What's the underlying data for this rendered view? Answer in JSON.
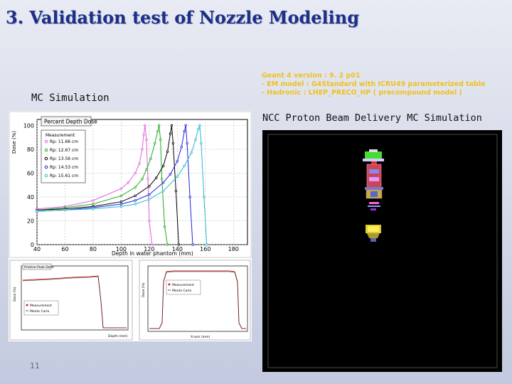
{
  "slide": {
    "title": "3. Validation test of Nozzle Modeling",
    "slide_number": "11"
  },
  "geant4_notes": {
    "line1": "Geant 4 version : 9. 2 p01",
    "line2": "- EM model : G4Standard with ICRU49 parameterized table",
    "line3": "- Hadronic : LHEP_PRECO_HP ( precompound model )"
  },
  "mc_section": {
    "label": "MC Simulation"
  },
  "ncc_section": {
    "label": "NCC Proton Beam Delivery MC Simulation"
  },
  "pdd_chart": {
    "legend_title": "Percent Depth Dose",
    "legend_header": "Measurement",
    "ylabel": "Dose (%)",
    "xlabel": "Depth in water phantom (mm)",
    "x_ticks": [
      "40",
      "60",
      "80",
      "100",
      "120",
      "140",
      "160",
      "180"
    ],
    "y_ticks": [
      "0",
      "20",
      "40",
      "60",
      "80",
      "100"
    ],
    "colors": {
      "series1": "#e060e0",
      "series2": "#22aa22",
      "series3": "#000000",
      "series4": "#2222dd",
      "series5": "#22bbcc"
    }
  },
  "chart_data": {
    "type": "line",
    "title": "Percent Depth Dose",
    "xlabel": "Depth in water phantom (mm)",
    "ylabel": "Dose (%)",
    "xlim": [
      40,
      190
    ],
    "ylim": [
      0,
      105
    ],
    "series": [
      {
        "name": "Rp: 11.66 cm",
        "x": [
          40,
          60,
          80,
          100,
          105,
          110,
          113,
          115,
          116,
          117,
          118,
          119,
          120,
          122
        ],
        "y": [
          30,
          32,
          37,
          47,
          52,
          60,
          68,
          80,
          92,
          100,
          88,
          55,
          20,
          0
        ]
      },
      {
        "name": "Rp: 12.67 cm",
        "x": [
          40,
          60,
          80,
          100,
          110,
          115,
          118,
          121,
          124,
          126,
          127,
          128,
          129,
          131,
          133
        ],
        "y": [
          29,
          31,
          34,
          41,
          48,
          55,
          63,
          72,
          85,
          95,
          100,
          88,
          55,
          15,
          0
        ]
      },
      {
        "name": "Rp: 13.56 cm",
        "x": [
          40,
          60,
          80,
          100,
          110,
          120,
          125,
          130,
          133,
          135,
          136,
          137,
          139,
          141
        ],
        "y": [
          29,
          30,
          32,
          36,
          41,
          49,
          56,
          66,
          78,
          93,
          100,
          85,
          45,
          0
        ]
      },
      {
        "name": "Rp: 14.53 cm",
        "x": [
          40,
          60,
          80,
          100,
          110,
          120,
          130,
          135,
          140,
          143,
          145,
          146,
          147,
          149,
          151
        ],
        "y": [
          28,
          29,
          31,
          34,
          37,
          42,
          52,
          59,
          70,
          82,
          95,
          100,
          85,
          40,
          0
        ]
      },
      {
        "name": "Rp: 15.61 cm",
        "x": [
          40,
          60,
          80,
          100,
          110,
          120,
          130,
          140,
          145,
          150,
          153,
          155,
          156,
          157,
          159,
          161
        ],
        "y": [
          28,
          29,
          30,
          32,
          34,
          38,
          45,
          57,
          66,
          77,
          88,
          97,
          100,
          85,
          40,
          0
        ]
      }
    ]
  },
  "profile_left": {
    "legend_title": "Pristine Peak Dose",
    "legend_items": [
      "Measurement",
      "Monte Carlo"
    ],
    "xlabel": "Depth (mm)",
    "ylabel": "Dose (%)",
    "colors": {
      "measurement": "#cc2222",
      "monte_carlo": "#333333"
    }
  },
  "profile_right": {
    "legend_items": [
      "Measurement",
      "Monte Carlo"
    ],
    "xlabel": "X-axis (mm)",
    "ylabel": "Dose (%)",
    "colors": {
      "measurement": "#cc2222",
      "monte_carlo": "#333333"
    }
  },
  "nozzle": {
    "components": [
      "scatterer-top",
      "range-modulator",
      "first-scatterer",
      "second-scatterer",
      "collimator",
      "aperture"
    ]
  }
}
